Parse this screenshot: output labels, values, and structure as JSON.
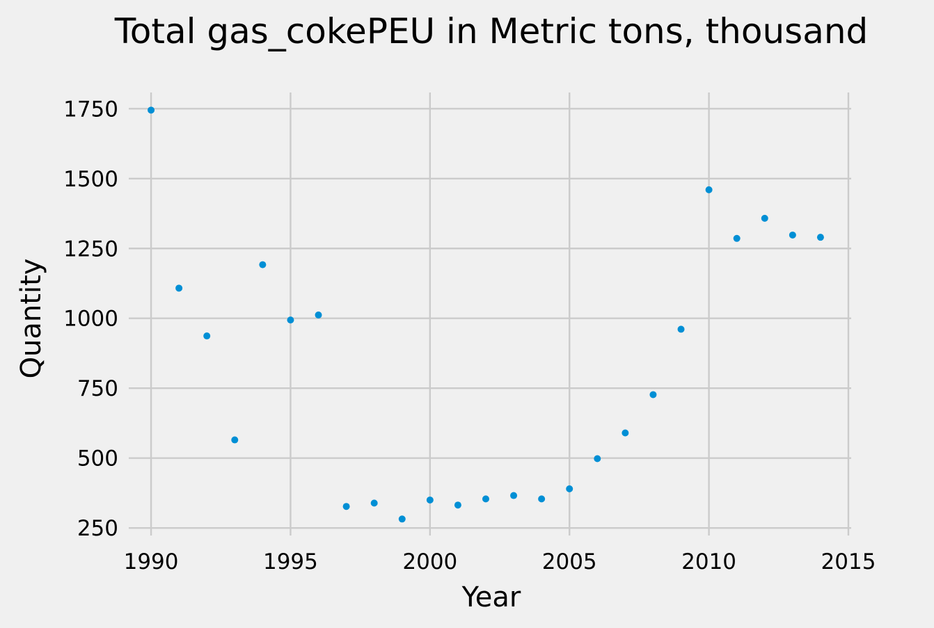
{
  "chart_data": {
    "type": "scatter",
    "title": "Total gas_cokePEU in Metric tons,  thousand",
    "xlabel": "Year",
    "ylabel": "Quantity",
    "xlim": [
      1989.2,
      2015.1
    ],
    "ylim": [
      223,
      1808
    ],
    "x_ticks": [
      1990,
      1995,
      2000,
      2005,
      2010,
      2015
    ],
    "y_ticks": [
      250,
      500,
      750,
      1000,
      1250,
      1500,
      1750
    ],
    "grid": true,
    "legend": "none",
    "point_color": "#008fd5",
    "grid_color": "#cbcbcb",
    "background_color": "#f0f0f0",
    "series": [
      {
        "x": [
          1990,
          1991,
          1992,
          1993,
          1994,
          1995,
          1996,
          1997,
          1998,
          1999,
          2000,
          2001,
          2002,
          2003,
          2004,
          2005,
          2006,
          2007,
          2008,
          2009,
          2010,
          2011,
          2012,
          2013,
          2014
        ],
        "y": [
          1745,
          1108,
          937,
          565,
          1192,
          994,
          1012,
          327,
          339,
          282,
          350,
          332,
          354,
          366,
          354,
          390,
          498,
          590,
          727,
          961,
          1460,
          1286,
          1358,
          1298,
          1290
        ]
      }
    ]
  }
}
